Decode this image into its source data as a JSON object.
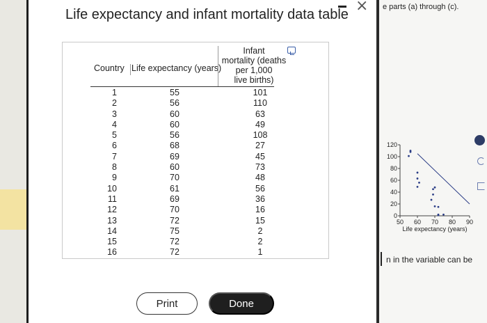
{
  "dialog": {
    "title": "Life expectancy and infant mortality data table"
  },
  "table": {
    "headers": {
      "country": "Country",
      "life": "Life expectancy (years)",
      "infant_lines": [
        "Infant",
        "mortality (deaths",
        "per 1,000",
        "live births)"
      ]
    },
    "rows": [
      {
        "country": "1",
        "life": "55",
        "infant": "101"
      },
      {
        "country": "2",
        "life": "56",
        "infant": "110"
      },
      {
        "country": "3",
        "life": "60",
        "infant": "63"
      },
      {
        "country": "4",
        "life": "60",
        "infant": "49"
      },
      {
        "country": "5",
        "life": "56",
        "infant": "108"
      },
      {
        "country": "6",
        "life": "68",
        "infant": "27"
      },
      {
        "country": "7",
        "life": "69",
        "infant": "45"
      },
      {
        "country": "8",
        "life": "60",
        "infant": "73"
      },
      {
        "country": "9",
        "life": "70",
        "infant": "48"
      },
      {
        "country": "10",
        "life": "61",
        "infant": "56"
      },
      {
        "country": "11",
        "life": "69",
        "infant": "36"
      },
      {
        "country": "12",
        "life": "70",
        "infant": "16"
      },
      {
        "country": "13",
        "life": "72",
        "infant": "15"
      },
      {
        "country": "14",
        "life": "75",
        "infant": "2"
      },
      {
        "country": "15",
        "life": "72",
        "infant": "2"
      },
      {
        "country": "16",
        "life": "72",
        "infant": "1"
      }
    ]
  },
  "buttons": {
    "print": "Print",
    "done": "Done"
  },
  "background": {
    "top_text": "e parts (a) through (c).",
    "bottom_text": "n in the variable can be"
  },
  "chart_data": {
    "type": "scatter",
    "xlabel": "Life expectancy (years)",
    "ylabel": "",
    "x_ticks": [
      "50",
      "60",
      "70",
      "80",
      "90"
    ],
    "y_ticks": [
      "0",
      "20",
      "40",
      "60",
      "80",
      "100",
      "120"
    ],
    "xlim": [
      50,
      90
    ],
    "ylim": [
      0,
      120
    ],
    "points": [
      {
        "x": 55,
        "y": 101
      },
      {
        "x": 56,
        "y": 110
      },
      {
        "x": 60,
        "y": 63
      },
      {
        "x": 60,
        "y": 49
      },
      {
        "x": 56,
        "y": 108
      },
      {
        "x": 68,
        "y": 27
      },
      {
        "x": 69,
        "y": 45
      },
      {
        "x": 60,
        "y": 73
      },
      {
        "x": 70,
        "y": 48
      },
      {
        "x": 61,
        "y": 56
      },
      {
        "x": 69,
        "y": 36
      },
      {
        "x": 70,
        "y": 16
      },
      {
        "x": 72,
        "y": 15
      },
      {
        "x": 75,
        "y": 2
      },
      {
        "x": 72,
        "y": 2
      },
      {
        "x": 72,
        "y": 1
      }
    ],
    "trend_line": {
      "from": {
        "x": 60,
        "y": 105
      },
      "to": {
        "x": 90,
        "y": 20
      }
    },
    "colors": {
      "points": "#2b3d86",
      "line": "#2b3d86"
    }
  }
}
